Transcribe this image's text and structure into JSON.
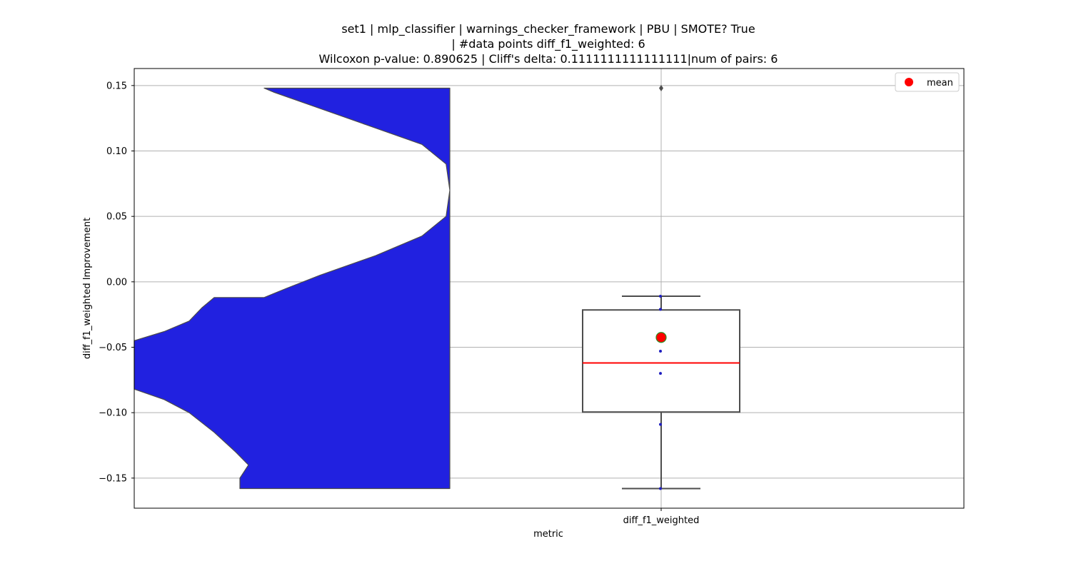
{
  "chart_data": {
    "type": "violin+box",
    "title_lines": [
      "set1 | mlp_classifier | warnings_checker_framework | PBU | SMOTE? True",
      "| #data points diff_f1_weighted: 6",
      "Wilcoxon p-value: 0.890625 | Cliff's delta: 0.1111111111111111|num of pairs: 6"
    ],
    "xlabel": "metric",
    "ylabel": "diff_f1_weighted Improvement",
    "categories": [
      "diff_f1_weighted"
    ],
    "ylim": [
      -0.173,
      0.163
    ],
    "yticks": [
      0.15,
      0.1,
      0.05,
      0.0,
      -0.05,
      -0.1,
      -0.15
    ],
    "ytick_labels": [
      "0.15",
      "0.10",
      "0.05",
      "0.00",
      "−0.05",
      "−0.10",
      "−0.15"
    ],
    "grid": true,
    "legend": {
      "placement": "top-right",
      "entries": [
        {
          "label": "mean",
          "color": "#ff0000"
        }
      ]
    },
    "points": [
      -0.011,
      -0.021,
      -0.053,
      -0.07,
      -0.109,
      -0.158
    ],
    "box": {
      "q1": -0.0995,
      "median": -0.062,
      "q3": -0.0215,
      "whisker_low": -0.158,
      "whisker_high": -0.011
    },
    "mean": -0.0425,
    "outliers": [
      0.148
    ],
    "violin_profile": [
      {
        "y": 0.148,
        "w": 0.0
      },
      {
        "y": 0.145,
        "w": 0.05
      },
      {
        "y": 0.135,
        "w": 0.25
      },
      {
        "y": 0.12,
        "w": 0.55
      },
      {
        "y": 0.105,
        "w": 0.85
      },
      {
        "y": 0.09,
        "w": 0.98
      },
      {
        "y": 0.07,
        "w": 1.0
      },
      {
        "y": 0.05,
        "w": 0.98
      },
      {
        "y": 0.035,
        "w": 0.85
      },
      {
        "y": 0.02,
        "w": 0.6
      },
      {
        "y": 0.005,
        "w": 0.3
      },
      {
        "y": -0.005,
        "w": 0.12
      },
      {
        "y": -0.012,
        "w": 0.0
      }
    ],
    "violin_left_profile": [
      {
        "y": -0.012,
        "w": 0.0
      },
      {
        "y": -0.02,
        "w": -0.05
      },
      {
        "y": -0.03,
        "w": -0.1
      },
      {
        "y": -0.038,
        "w": -0.2
      },
      {
        "y": -0.045,
        "w": -0.32
      },
      {
        "y": -0.082,
        "w": -0.32
      },
      {
        "y": -0.09,
        "w": -0.2
      },
      {
        "y": -0.1,
        "w": -0.1
      },
      {
        "y": -0.115,
        "w": -0.0
      },
      {
        "y": -0.13,
        "w": 0.05
      },
      {
        "y": -0.14,
        "w": 0.08
      },
      {
        "y": -0.15,
        "w": 0.06
      },
      {
        "y": -0.158,
        "w": 0.06
      }
    ],
    "colors": {
      "violin_fill": "#2121e0",
      "violin_edge": "#4a4a4a",
      "box_edge": "#4d4d4d",
      "median": "#ff0000",
      "mean_fill": "#ff0000",
      "mean_edge": "#2e8b22",
      "point": "#1f1fbf",
      "grid": "#b0b0b0"
    }
  }
}
